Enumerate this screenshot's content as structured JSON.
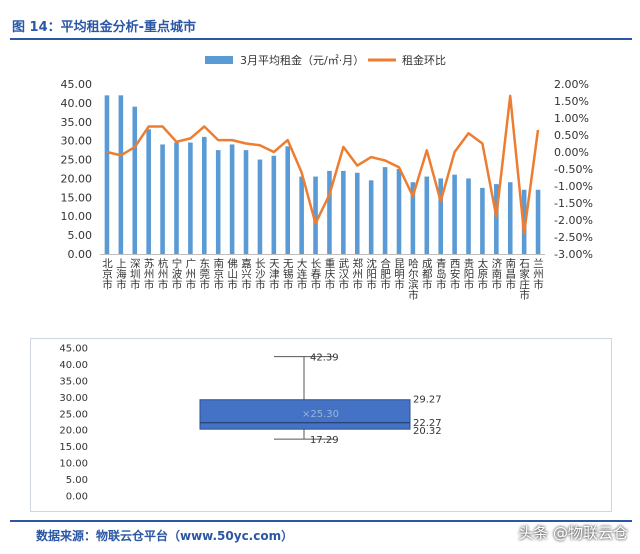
{
  "figure": {
    "title": "图 14：平均租金分析-重点城市",
    "source": "数据来源：物联云仓平台（www.50yc.com）",
    "watermark": "头条 @物联云仓"
  },
  "chart_data": [
    {
      "type": "bar",
      "legend": [
        "3月平均租金（元/㎡·月）",
        "租金环比"
      ],
      "legend_position": "top",
      "categories": [
        "北京市",
        "上海市",
        "深圳市",
        "苏州市",
        "杭州市",
        "宁波市",
        "广州市",
        "东莞市",
        "南京市",
        "佛山市",
        "嘉兴市",
        "长沙市",
        "天津市",
        "无锡市",
        "大连市",
        "长春市",
        "重庆市",
        "武汉市",
        "郑州市",
        "沈阳市",
        "合肥市",
        "昆明市",
        "哈尔滨市",
        "成都市",
        "青岛市",
        "西安市",
        "贵阳市",
        "太原市",
        "济南市",
        "南昌市",
        "石家庄市",
        "兰州市"
      ],
      "series": [
        {
          "name": "3月平均租金（元/㎡·月）",
          "type": "bar",
          "color": "#5b9bd5",
          "values": [
            42.0,
            42.0,
            39.0,
            33.0,
            29.0,
            29.5,
            29.5,
            31.0,
            27.5,
            29.0,
            27.5,
            25.0,
            26.0,
            28.5,
            20.5,
            20.5,
            22.0,
            22.0,
            21.5,
            19.5,
            23.0,
            22.5,
            19.0,
            20.5,
            20.0,
            21.0,
            20.0,
            17.5,
            18.5,
            19.0,
            17.0,
            17.0
          ]
        },
        {
          "name": "租金环比",
          "type": "line",
          "axis": "right",
          "color": "#ed7d31",
          "values": [
            0.0,
            -0.1,
            0.15,
            0.75,
            0.75,
            0.3,
            0.4,
            0.75,
            0.35,
            0.35,
            0.25,
            0.2,
            0.0,
            0.35,
            -0.6,
            -2.1,
            -1.25,
            0.15,
            -0.4,
            -0.15,
            -0.25,
            -0.45,
            -1.3,
            0.05,
            -1.45,
            0.0,
            0.55,
            0.25,
            -1.9,
            1.65,
            -2.4,
            0.65
          ]
        }
      ],
      "y_left": {
        "min": 0,
        "max": 45,
        "step": 5,
        "tick_labels": [
          "0.00",
          "5.00",
          "10.00",
          "15.00",
          "20.00",
          "25.00",
          "30.00",
          "35.00",
          "40.00",
          "45.00"
        ]
      },
      "y_right": {
        "min": -3.0,
        "max": 2.0,
        "step": 0.5,
        "tick_labels": [
          "-3.00%",
          "-2.50%",
          "-2.00%",
          "-1.50%",
          "-1.00%",
          "-0.50%",
          "0.00%",
          "0.50%",
          "1.00%",
          "1.50%",
          "2.00%"
        ]
      },
      "grid": false
    },
    {
      "type": "box",
      "orientation": "horizontal",
      "color": "#4472c4",
      "x_axis": {
        "min": 0,
        "max": 45,
        "step": 5,
        "tick_labels": [
          "0.00",
          "5.00",
          "10.00",
          "15.00",
          "20.00",
          "25.00",
          "30.00",
          "35.00",
          "40.00",
          "45.00"
        ]
      },
      "stats": {
        "min": 17.29,
        "q1": 20.32,
        "median": 22.27,
        "q3": 29.27,
        "max": 42.39,
        "mean": 25.3
      },
      "labels": {
        "min": "17.29",
        "q1": "20.32",
        "median": "22.27",
        "q3": "29.27",
        "max": "42.39",
        "mean": "×25.30"
      }
    }
  ]
}
